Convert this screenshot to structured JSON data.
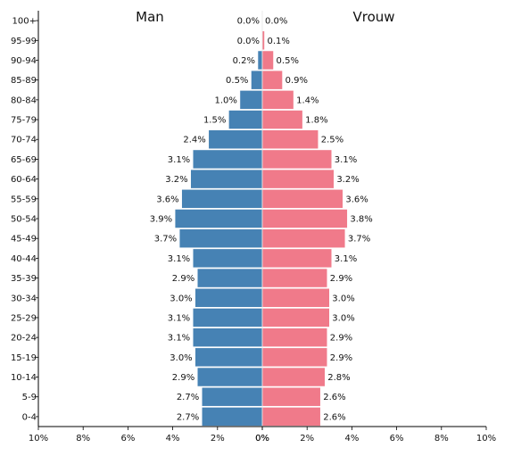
{
  "chart_data": {
    "type": "bar",
    "orientation": "horizontal",
    "layout": "population-pyramid",
    "categories": [
      "0-4",
      "5-9",
      "10-14",
      "15-19",
      "20-24",
      "25-29",
      "30-34",
      "35-39",
      "40-44",
      "45-49",
      "50-54",
      "55-59",
      "60-64",
      "65-69",
      "70-74",
      "75-79",
      "80-84",
      "85-89",
      "90-94",
      "95-99",
      "100+"
    ],
    "series": [
      {
        "name": "Man",
        "side": "left",
        "color": "#4682b4",
        "values": [
          2.7,
          2.7,
          2.9,
          3.0,
          3.1,
          3.1,
          3.0,
          2.9,
          3.1,
          3.7,
          3.9,
          3.6,
          3.2,
          3.1,
          2.4,
          1.5,
          1.0,
          0.5,
          0.2,
          0.0,
          0.0
        ],
        "labels": [
          "2.7%",
          "2.7%",
          "2.9%",
          "3.0%",
          "3.1%",
          "3.1%",
          "3.0%",
          "2.9%",
          "3.1%",
          "3.7%",
          "3.9%",
          "3.6%",
          "3.2%",
          "3.1%",
          "2.4%",
          "1.5%",
          "1.0%",
          "0.5%",
          "0.2%",
          "0.0%",
          "0.0%"
        ]
      },
      {
        "name": "Vrouw",
        "side": "right",
        "color": "#f07a8a",
        "values": [
          2.6,
          2.6,
          2.8,
          2.9,
          2.9,
          3.0,
          3.0,
          2.9,
          3.1,
          3.7,
          3.8,
          3.6,
          3.2,
          3.1,
          2.5,
          1.8,
          1.4,
          0.9,
          0.5,
          0.1,
          0.0
        ],
        "labels": [
          "2.6%",
          "2.6%",
          "2.8%",
          "2.9%",
          "2.9%",
          "3.0%",
          "3.0%",
          "2.9%",
          "3.1%",
          "3.7%",
          "3.8%",
          "3.6%",
          "3.2%",
          "3.1%",
          "2.5%",
          "1.8%",
          "1.4%",
          "0.9%",
          "0.5%",
          "0.1%",
          "0.0%"
        ]
      }
    ],
    "xlim": [
      0,
      10
    ],
    "x_ticks_left": [
      "10%",
      "8%",
      "6%",
      "4%",
      "2%",
      "0%"
    ],
    "x_ticks_right": [
      "0%",
      "2%",
      "4%",
      "6%",
      "8%",
      "10%"
    ],
    "tick_values": [
      10,
      8,
      6,
      4,
      2,
      0
    ],
    "title": "",
    "xlabel": "",
    "ylabel": "",
    "grid": false,
    "legend": "none"
  }
}
